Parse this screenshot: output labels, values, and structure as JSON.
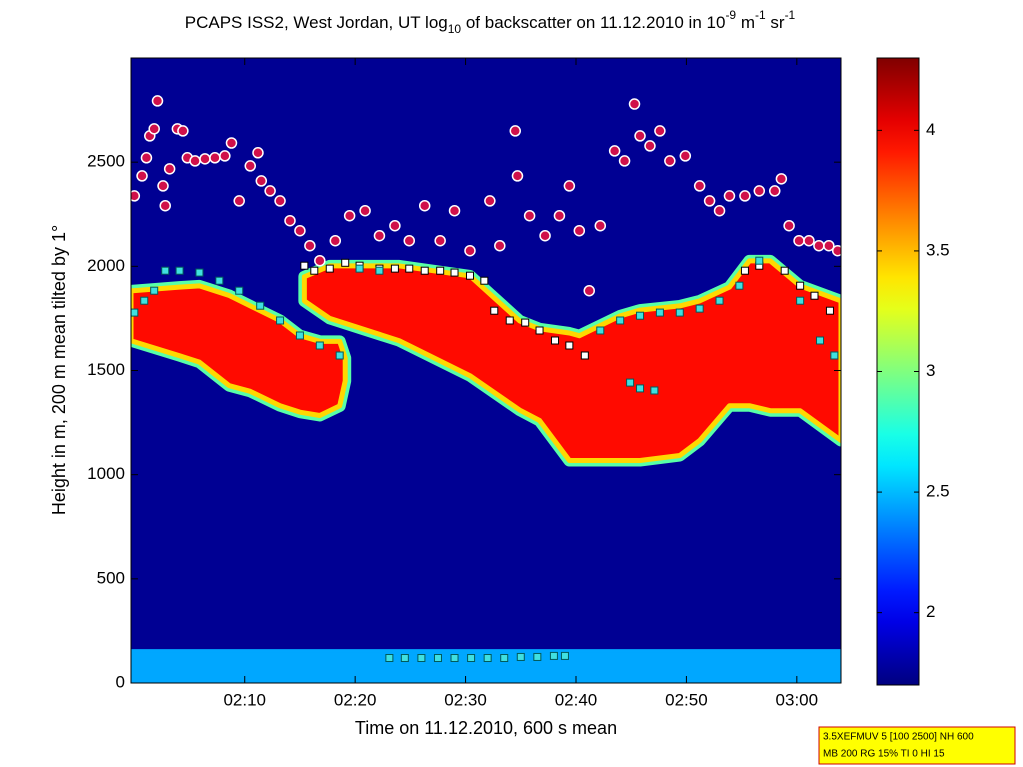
{
  "chart_data": {
    "type": "heatmap",
    "title_parts": [
      "PCAPS ISS2, West Jordan, UT log",
      "10",
      " of backscatter on 11.12.2010 in 10",
      "-9",
      " m",
      "-1",
      " sr",
      "-1"
    ],
    "xlabel": "Time on 11.12.2010, 600 s mean",
    "ylabel": "Height in m, 200 m mean tilted by 1°",
    "annotation": [
      "3.5XEFMUV 5 [100 2500] NH 600",
      "MB 200 RG 15% TI 0 HI 15"
    ],
    "xlim": [
      119.7,
      184.0
    ],
    "xticks": [
      {
        "value": 130,
        "label": "02:10"
      },
      {
        "value": 140,
        "label": "02:20"
      },
      {
        "value": 150,
        "label": "02:30"
      },
      {
        "value": 160,
        "label": "02:40"
      },
      {
        "value": 170,
        "label": "02:50"
      },
      {
        "value": 180,
        "label": "03:00"
      }
    ],
    "ylim": [
      0,
      3000
    ],
    "yticks": [
      0,
      500,
      1000,
      1500,
      2000,
      2500
    ],
    "background_value": 1.75,
    "colorbar": {
      "clim": [
        1.7,
        4.3
      ],
      "ticks": [
        2,
        2.5,
        3,
        3.5,
        4
      ]
    },
    "layers": [
      {
        "value": 2.45,
        "edge_value": 2.45,
        "x": [
          119.7,
          184.0
        ],
        "top": [
          134,
          134
        ],
        "bottom": [
          0,
          0
        ]
      },
      {
        "value": 3.95,
        "edge_value": 2.9,
        "x": [
          119.7,
          124.1,
          125.9,
          128.6,
          130.5,
          133.2,
          135.0,
          136.8,
          138.6,
          139.1
        ],
        "top": [
          1882,
          1900,
          1906,
          1860,
          1810,
          1740,
          1667,
          1640,
          1640,
          1560
        ],
        "bottom": [
          1643,
          1571,
          1540,
          1427,
          1400,
          1331,
          1300,
          1284,
          1330,
          1450
        ]
      },
      {
        "value": 3.95,
        "edge_value": 2.9,
        "x": [
          135.4,
          137.7,
          144.0,
          150.4,
          154.9,
          156.7,
          159.4,
          160.3,
          164.0,
          165.8,
          169.4,
          171.2,
          173.9,
          175.7,
          177.6,
          180.3,
          184.0
        ],
        "top": [
          1950,
          2002,
          2002,
          1954,
          1738,
          1700,
          1680,
          1667,
          1762,
          1790,
          1810,
          1834,
          1900,
          2026,
          2026,
          1906,
          1834
        ],
        "bottom": [
          1834,
          1750,
          1643,
          1475,
          1310,
          1260,
          1068,
          1068,
          1068,
          1068,
          1092,
          1164,
          1331,
          1331,
          1307,
          1307,
          1164
        ]
      }
    ],
    "markers": [
      {
        "shape": "circle",
        "color": "#d0104a",
        "edge": "#ffffff",
        "x": [
          120.0,
          120.7,
          121.1,
          121.4,
          121.8,
          122.1,
          122.6,
          122.8,
          123.2,
          123.9,
          124.4,
          124.8,
          125.5,
          126.4,
          127.3,
          128.2,
          128.8,
          129.5,
          130.5,
          131.2,
          131.5,
          132.3,
          133.2,
          134.1,
          135.0,
          135.9,
          136.8,
          138.2,
          139.5,
          140.9,
          142.2,
          143.6,
          144.9,
          146.3,
          147.7,
          149.0,
          150.4,
          152.2,
          153.1,
          154.5,
          154.7,
          155.8,
          157.2,
          158.5,
          159.4,
          160.3,
          161.2,
          162.2,
          163.5,
          164.4,
          165.3,
          165.8,
          166.7,
          167.6,
          168.5,
          169.9,
          171.2,
          172.1,
          173.0,
          173.9,
          175.3,
          176.6,
          178.0,
          178.6,
          179.3,
          180.2,
          181.1,
          182.0,
          182.9,
          183.7
        ],
        "y": [
          2338,
          2434,
          2521,
          2626,
          2660,
          2794,
          2386,
          2291,
          2468,
          2660,
          2650,
          2521,
          2506,
          2516,
          2521,
          2530,
          2592,
          2314,
          2482,
          2545,
          2410,
          2362,
          2314,
          2219,
          2171,
          2099,
          2027,
          2123,
          2243,
          2267,
          2147,
          2195,
          2123,
          2291,
          2123,
          2267,
          2075,
          2314,
          2099,
          2650,
          2434,
          2243,
          2147,
          2243,
          2386,
          2171,
          1883,
          2195,
          2554,
          2506,
          2779,
          2626,
          2578,
          2650,
          2506,
          2530,
          2386,
          2314,
          2267,
          2338,
          2338,
          2362,
          2362,
          2420,
          2195,
          2123,
          2123,
          2099,
          2099,
          2075
        ]
      },
      {
        "shape": "square",
        "color": "#ffffff",
        "edge": "#000000",
        "x": [
          135.4,
          136.3,
          137.7,
          139.1,
          140.4,
          142.2,
          143.6,
          144.9,
          146.3,
          147.7,
          149.0,
          150.4,
          151.7,
          152.6,
          154.0,
          155.4,
          156.7,
          158.1,
          159.4,
          160.8,
          175.3,
          176.6,
          178.9,
          180.3,
          181.6,
          183.0
        ],
        "y": [
          2003,
          1979,
          1989,
          2017,
          2003,
          1989,
          1989,
          1989,
          1979,
          1979,
          1970,
          1955,
          1931,
          1787,
          1740,
          1730,
          1692,
          1644,
          1620,
          1572,
          1979,
          2003,
          1979,
          1907,
          1859,
          1787
        ]
      },
      {
        "shape": "square",
        "color": "#40e0e0",
        "edge": "#005a5a",
        "x": [
          120.0,
          120.9,
          121.8,
          122.8,
          124.1,
          125.9,
          127.7,
          129.5,
          131.4,
          133.2,
          135.0,
          136.8,
          138.6,
          140.4,
          142.2,
          162.2,
          164.0,
          165.8,
          167.6,
          169.4,
          171.2,
          173.0,
          174.8,
          176.6,
          164.9,
          165.8,
          167.1,
          180.3,
          182.1,
          183.4,
          143.1,
          144.5,
          146.0,
          147.5,
          149.0,
          150.5,
          152.0,
          153.5,
          155.0,
          156.5,
          158.0,
          159.0
        ],
        "y": [
          1778,
          1835,
          1883,
          1979,
          1979,
          1970,
          1931,
          1883,
          1811,
          1740,
          1668,
          1620,
          1572,
          1989,
          1979,
          1692,
          1740,
          1763,
          1778,
          1778,
          1797,
          1835,
          1907,
          2027,
          1442,
          1414,
          1404,
          1835,
          1644,
          1572,
          120,
          120,
          120,
          120,
          120,
          120,
          120,
          120,
          125,
          125,
          130,
          130
        ]
      }
    ]
  }
}
